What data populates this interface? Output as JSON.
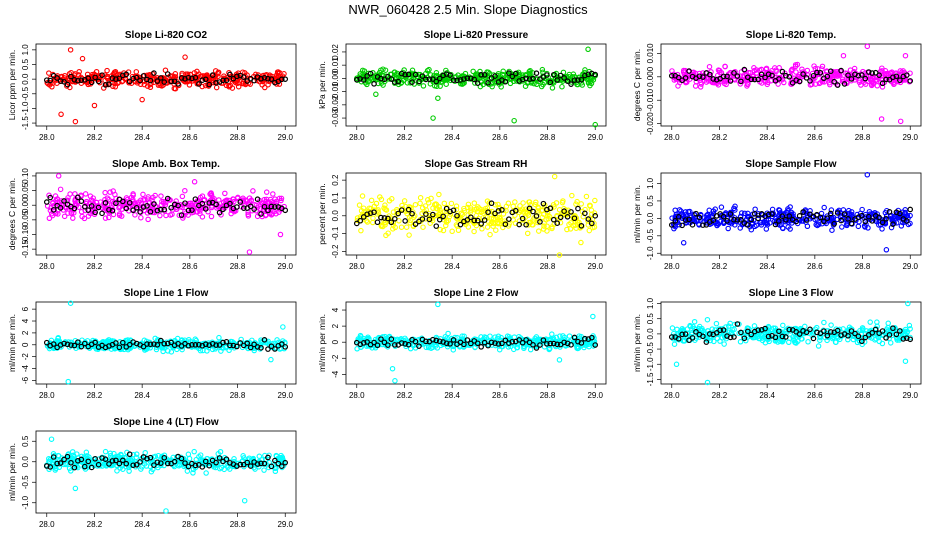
{
  "page_title": "NWR_060428  2.5 Min. Slope Diagnostics",
  "chart_data": [
    {
      "type": "scatter",
      "title": "Slope Li-820 CO2",
      "ylabel": "Licor ppm per min.",
      "xlim": [
        27.98,
        29.02
      ],
      "ylim": [
        -1.6,
        1.2
      ],
      "yticks": [
        -1.5,
        -1.0,
        -0.5,
        0.0,
        0.5,
        1.0
      ],
      "ytick_labels": [
        "-1.5",
        "-1.0",
        "-0.5",
        "0.0",
        "0.5",
        "1.0"
      ],
      "xticks": [
        28.0,
        28.2,
        28.4,
        28.6,
        28.8,
        29.0
      ],
      "xtick_labels": [
        "28.0",
        "28.2",
        "28.4",
        "28.6",
        "28.8",
        "29.0"
      ],
      "color": "#ff0000",
      "spread": 0.22,
      "range": [
        -1.5,
        1.0
      ],
      "outliers": [
        [
          28.1,
          1.0
        ],
        [
          28.12,
          -1.45
        ],
        [
          28.06,
          -1.2
        ],
        [
          28.2,
          -0.9
        ],
        [
          28.4,
          -0.7
        ],
        [
          28.15,
          0.7
        ],
        [
          28.58,
          0.75
        ]
      ]
    },
    {
      "type": "scatter",
      "title": "Slope Li-820 Pressure",
      "ylabel": "kPa per min.",
      "xlim": [
        27.98,
        29.02
      ],
      "ylim": [
        -0.036,
        0.026
      ],
      "yticks": [
        -0.03,
        -0.02,
        -0.01,
        0.0,
        0.01,
        0.02
      ],
      "ytick_labels": [
        "-0.03",
        "-0.02",
        "-0.01",
        "0.00",
        "0.01",
        "0.02"
      ],
      "xticks": [
        28.0,
        28.2,
        28.4,
        28.6,
        28.8,
        29.0
      ],
      "xtick_labels": [
        "28.0",
        "28.2",
        "28.4",
        "28.6",
        "28.8",
        "29.0"
      ],
      "color": "#00cc00",
      "spread": 0.005,
      "range": [
        -0.035,
        0.025
      ],
      "outliers": [
        [
          28.32,
          -0.03
        ],
        [
          28.66,
          -0.032
        ],
        [
          29.0,
          -0.035
        ],
        [
          28.97,
          0.022
        ],
        [
          28.08,
          -0.012
        ],
        [
          28.34,
          -0.015
        ]
      ]
    },
    {
      "type": "scatter",
      "title": "Slope Li-820 Temp.",
      "ylabel": "degrees C per min.",
      "xlim": [
        27.98,
        29.02
      ],
      "ylim": [
        -0.021,
        0.014
      ],
      "yticks": [
        -0.02,
        -0.01,
        0.0,
        0.01
      ],
      "ytick_labels": [
        "-0.020",
        "-0.010",
        "0.000",
        "0.010"
      ],
      "xticks": [
        28.0,
        28.2,
        28.4,
        28.6,
        28.8,
        29.0
      ],
      "xtick_labels": [
        "28.0",
        "28.2",
        "28.4",
        "28.6",
        "28.8",
        "29.0"
      ],
      "color": "#ff00ff",
      "spread": 0.0035,
      "range": [
        -0.02,
        0.013
      ],
      "outliers": [
        [
          28.82,
          0.013
        ],
        [
          28.98,
          0.009
        ],
        [
          28.96,
          -0.019
        ],
        [
          28.88,
          -0.018
        ],
        [
          28.72,
          0.009
        ]
      ]
    },
    {
      "type": "scatter",
      "title": "Slope Amb. Box Temp.",
      "ylabel": "degrees C per min.",
      "xlim": [
        27.98,
        29.02
      ],
      "ylim": [
        -0.17,
        0.11
      ],
      "yticks": [
        -0.15,
        -0.1,
        -0.05,
        0.0,
        0.05,
        0.1
      ],
      "ytick_labels": [
        "-0.15",
        "-0.10",
        "-0.05",
        "0.00",
        "0.05",
        "0.10"
      ],
      "xticks": [
        28.0,
        28.2,
        28.4,
        28.6,
        28.8,
        29.0
      ],
      "xtick_labels": [
        "28.0",
        "28.2",
        "28.4",
        "28.6",
        "28.8",
        "29.0"
      ],
      "color": "#ff00ff",
      "spread": 0.035,
      "range": [
        -0.16,
        0.1
      ],
      "outliers": [
        [
          28.85,
          -0.16
        ],
        [
          28.98,
          -0.1
        ],
        [
          28.05,
          0.1
        ],
        [
          28.62,
          0.08
        ]
      ]
    },
    {
      "type": "scatter",
      "title": "Slope Gas Stream RH",
      "ylabel": "percent per min.",
      "xlim": [
        27.98,
        29.02
      ],
      "ylim": [
        -0.22,
        0.24
      ],
      "yticks": [
        -0.2,
        -0.1,
        0.0,
        0.1,
        0.2
      ],
      "ytick_labels": [
        "-0.2",
        "-0.1",
        "0.0",
        "0.1",
        "0.2"
      ],
      "xticks": [
        28.0,
        28.2,
        28.4,
        28.6,
        28.8,
        29.0
      ],
      "xtick_labels": [
        "28.0",
        "28.2",
        "28.4",
        "28.6",
        "28.8",
        "29.0"
      ],
      "color": "#ffff00",
      "spread": 0.08,
      "range": [
        -0.22,
        0.22
      ],
      "outliers": [
        [
          28.83,
          0.22
        ],
        [
          28.85,
          -0.22
        ],
        [
          28.94,
          -0.15
        ]
      ]
    },
    {
      "type": "scatter",
      "title": "Slope Sample Flow",
      "ylabel": "ml/min per min.",
      "xlim": [
        27.98,
        29.02
      ],
      "ylim": [
        -1.05,
        1.3
      ],
      "yticks": [
        -1.0,
        -0.5,
        0.0,
        0.5,
        1.0
      ],
      "ytick_labels": [
        "-1.0",
        "-0.5",
        "0.0",
        "0.5",
        "1.0"
      ],
      "xticks": [
        28.0,
        28.2,
        28.4,
        28.6,
        28.8,
        29.0
      ],
      "xtick_labels": [
        "28.0",
        "28.2",
        "28.4",
        "28.6",
        "28.8",
        "29.0"
      ],
      "color": "#0000ff",
      "spread": 0.25,
      "range": [
        -1.0,
        1.25
      ],
      "outliers": [
        [
          28.82,
          1.25
        ],
        [
          28.9,
          -0.9
        ],
        [
          28.05,
          -0.7
        ]
      ]
    },
    {
      "type": "scatter",
      "title": "Slope Line 1 Flow",
      "ylabel": "ml/min per min.",
      "xlim": [
        27.98,
        29.02
      ],
      "ylim": [
        -6.6,
        7.2
      ],
      "yticks": [
        -6,
        -4,
        -2,
        0,
        2,
        4,
        6
      ],
      "ytick_labels": [
        "-6",
        "-4",
        "-2",
        "0",
        "2",
        "4",
        "6"
      ],
      "xticks": [
        28.0,
        28.2,
        28.4,
        28.6,
        28.8,
        29.0
      ],
      "xtick_labels": [
        "28.0",
        "28.2",
        "28.4",
        "28.6",
        "28.8",
        "29.0"
      ],
      "color": "#00ffff",
      "spread": 0.8,
      "range": [
        -6.5,
        7.0
      ],
      "outliers": [
        [
          28.1,
          7.0
        ],
        [
          28.09,
          -6.2
        ],
        [
          28.99,
          3.0
        ],
        [
          28.94,
          -2.5
        ]
      ]
    },
    {
      "type": "scatter",
      "title": "Slope Line 2 Flow",
      "ylabel": "ml/min per min.",
      "xlim": [
        27.98,
        29.02
      ],
      "ylim": [
        -5.2,
        5.0
      ],
      "yticks": [
        -4,
        -2,
        0,
        2,
        4
      ],
      "ytick_labels": [
        "-4",
        "-2",
        "0",
        "2",
        "4"
      ],
      "xticks": [
        28.0,
        28.2,
        28.4,
        28.6,
        28.8,
        29.0
      ],
      "xtick_labels": [
        "28.0",
        "28.2",
        "28.4",
        "28.6",
        "28.8",
        "29.0"
      ],
      "color": "#00ffff",
      "spread": 0.7,
      "range": [
        -5.0,
        4.8
      ],
      "outliers": [
        [
          28.16,
          -4.8
        ],
        [
          28.15,
          -3.3
        ],
        [
          28.34,
          4.7
        ],
        [
          28.99,
          3.2
        ],
        [
          28.85,
          -2.2
        ]
      ]
    },
    {
      "type": "scatter",
      "title": "Slope Line 3 Flow",
      "ylabel": "ml/min per min.",
      "xlim": [
        27.98,
        29.02
      ],
      "ylim": [
        -1.65,
        1.05
      ],
      "yticks": [
        -1.5,
        -1.0,
        -0.5,
        0.0,
        0.5,
        1.0
      ],
      "ytick_labels": [
        "-1.5",
        "-1.0",
        "-0.5",
        "0.0",
        "0.5",
        "1.0"
      ],
      "xticks": [
        28.0,
        28.2,
        28.4,
        28.6,
        28.8,
        29.0
      ],
      "xtick_labels": [
        "28.0",
        "28.2",
        "28.4",
        "28.6",
        "28.8",
        "29.0"
      ],
      "color": "#00ffff",
      "spread": 0.28,
      "range": [
        -1.6,
        1.0
      ],
      "outliers": [
        [
          28.15,
          -1.6
        ],
        [
          28.99,
          1.0
        ],
        [
          28.98,
          -0.9
        ],
        [
          28.02,
          -1.0
        ]
      ]
    },
    {
      "type": "scatter",
      "title": "Slope Line 4 (LT) Flow",
      "ylabel": "ml/min per min.",
      "xlim": [
        27.98,
        29.02
      ],
      "ylim": [
        -1.25,
        0.75
      ],
      "yticks": [
        -1.0,
        -0.5,
        0.0,
        0.5
      ],
      "ytick_labels": [
        "-1.0",
        "-0.5",
        "0.0",
        "0.5"
      ],
      "xticks": [
        28.0,
        28.2,
        28.4,
        28.6,
        28.8,
        29.0
      ],
      "xtick_labels": [
        "28.0",
        "28.2",
        "28.4",
        "28.6",
        "28.8",
        "29.0"
      ],
      "color": "#00ffff",
      "spread": 0.18,
      "range": [
        -1.2,
        0.7
      ],
      "outliers": [
        [
          28.5,
          -1.2
        ],
        [
          28.12,
          -0.65
        ],
        [
          28.83,
          -0.95
        ],
        [
          28.02,
          0.55
        ]
      ]
    }
  ]
}
